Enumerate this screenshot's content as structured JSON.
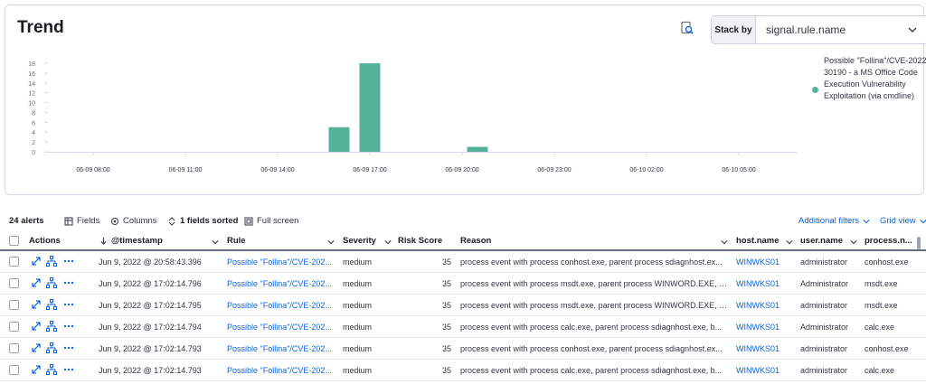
{
  "trend": {
    "title": "Trend",
    "stack_by_label": "Stack by",
    "stack_by_value": "signal.rule.name",
    "legend": {
      "label": "Possible \"Follina\"/CVE-2022-30190 - a MS Office Code Execution Vulnerability Exploitation (via cmdline)",
      "color": "#54b399"
    }
  },
  "chart_data": {
    "type": "bar",
    "ylim": [
      0,
      18
    ],
    "y_ticks": [
      "0",
      "2",
      "4",
      "6",
      "8",
      "10",
      "12",
      "14",
      "16",
      "18"
    ],
    "x_ticks": [
      "06-09 08:00",
      "06-09 11:00",
      "06-09 14:00",
      "06-09 17:00",
      "06-09 20:00",
      "06-09 23:00",
      "06-10 02:00",
      "06-10 05:00"
    ],
    "series": [
      {
        "name": "Possible \"Follina\"/CVE-2022-30190 - a MS Office Code Execution Vulnerability Exploitation (via cmdline)",
        "color": "#54b399",
        "points": [
          {
            "x": "06-09 16:00",
            "y": 5
          },
          {
            "x": "06-09 17:00",
            "y": 18
          },
          {
            "x": "06-09 20:30",
            "y": 1
          }
        ]
      }
    ]
  },
  "toolbar": {
    "alert_count": "24 alerts",
    "fields": "Fields",
    "columns": "Columns",
    "sorted": "1 fields sorted",
    "full_screen": "Full screen",
    "additional_filters": "Additional filters",
    "grid_view": "Grid view"
  },
  "table": {
    "headers": {
      "actions": "Actions",
      "timestamp": "@timestamp",
      "rule": "Rule",
      "severity": "Severity",
      "risk_score": "Risk Score",
      "reason": "Reason",
      "host": "host.name",
      "user": "user.name",
      "process": "process.n..."
    },
    "rows": [
      {
        "timestamp": "Jun 9, 2022 @ 20:58:43.396",
        "rule": "Possible \"Follina\"/CVE-202...",
        "severity": "medium",
        "risk": "35",
        "reason": "process event with process conhost.exe, parent process sdiagnhost.ex...",
        "host": "WINWKS01",
        "user": "administrator",
        "process": "conhost.exe"
      },
      {
        "timestamp": "Jun 9, 2022 @ 17:02:14.796",
        "rule": "Possible \"Follina\"/CVE-202...",
        "severity": "medium",
        "risk": "35",
        "reason": "process event with process msdt.exe, parent process WINWORD.EXE, b...",
        "host": "WINWKS01",
        "user": "Administrator",
        "process": "msdt.exe"
      },
      {
        "timestamp": "Jun 9, 2022 @ 17:02:14.795",
        "rule": "Possible \"Follina\"/CVE-202...",
        "severity": "medium",
        "risk": "35",
        "reason": "process event with process msdt.exe, parent process WINWORD.EXE, b...",
        "host": "WINWKS01",
        "user": "administrator",
        "process": "msdt.exe"
      },
      {
        "timestamp": "Jun 9, 2022 @ 17:02:14.794",
        "rule": "Possible \"Follina\"/CVE-202...",
        "severity": "medium",
        "risk": "35",
        "reason": "process event with process calc.exe, parent process sdiagnhost.exe, b...",
        "host": "WINWKS01",
        "user": "Administrator",
        "process": "calc.exe"
      },
      {
        "timestamp": "Jun 9, 2022 @ 17:02:14.793",
        "rule": "Possible \"Follina\"/CVE-202...",
        "severity": "medium",
        "risk": "35",
        "reason": "process event with process conhost.exe, parent process sdiagnhost.ex...",
        "host": "WINWKS01",
        "user": "administrator",
        "process": "conhost.exe"
      },
      {
        "timestamp": "Jun 9, 2022 @ 17:02:14.793",
        "rule": "Possible \"Follina\"/CVE-202...",
        "severity": "medium",
        "risk": "35",
        "reason": "process event with process calc.exe, parent process sdiagnhost.exe, b...",
        "host": "WINWKS01",
        "user": "administrator",
        "process": "calc.exe"
      }
    ]
  }
}
